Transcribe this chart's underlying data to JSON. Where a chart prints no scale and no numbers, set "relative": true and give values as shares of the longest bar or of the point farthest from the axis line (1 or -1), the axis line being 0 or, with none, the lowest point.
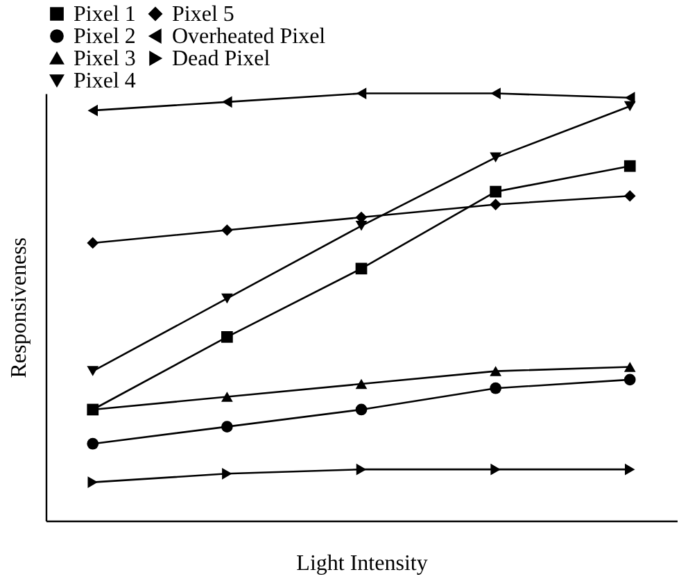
{
  "chart_data": {
    "type": "line",
    "relative": true,
    "xlabel": "Light Intensity",
    "ylabel": "Responsiveness",
    "categories": [
      null,
      null,
      null,
      null,
      null
    ],
    "grid": false,
    "legend": "top left",
    "line_style": "solid",
    "series": [
      {
        "name": "Pixel 1",
        "color": "#000000",
        "marker": "square",
        "values": [
          0.26,
          0.43,
          0.59,
          0.77,
          0.83
        ]
      },
      {
        "name": "Pixel 2",
        "color": "#000000",
        "marker": "circle",
        "values": [
          0.18,
          0.22,
          0.26,
          0.31,
          0.33
        ]
      },
      {
        "name": "Pixel 3",
        "color": "#000000",
        "marker": "triangle",
        "values": [
          0.26,
          0.29,
          0.32,
          0.35,
          0.36
        ]
      },
      {
        "name": "Pixel 4",
        "color": "#000000",
        "marker": "triangle-down",
        "values": [
          0.35,
          0.52,
          0.69,
          0.85,
          0.97
        ]
      },
      {
        "name": "Pixel 5",
        "color": "#000000",
        "marker": "diamond",
        "values": [
          0.65,
          0.68,
          0.71,
          0.74,
          0.76
        ]
      },
      {
        "name": "Overheated Pixel",
        "color": "#000000",
        "marker": "triangle-left",
        "values": [
          0.96,
          0.98,
          1.0,
          1.0,
          0.99
        ]
      },
      {
        "name": "Dead Pixel",
        "color": "#000000",
        "marker": "triangle-right",
        "values": [
          0.09,
          0.11,
          0.12,
          0.12,
          0.12
        ]
      }
    ]
  }
}
